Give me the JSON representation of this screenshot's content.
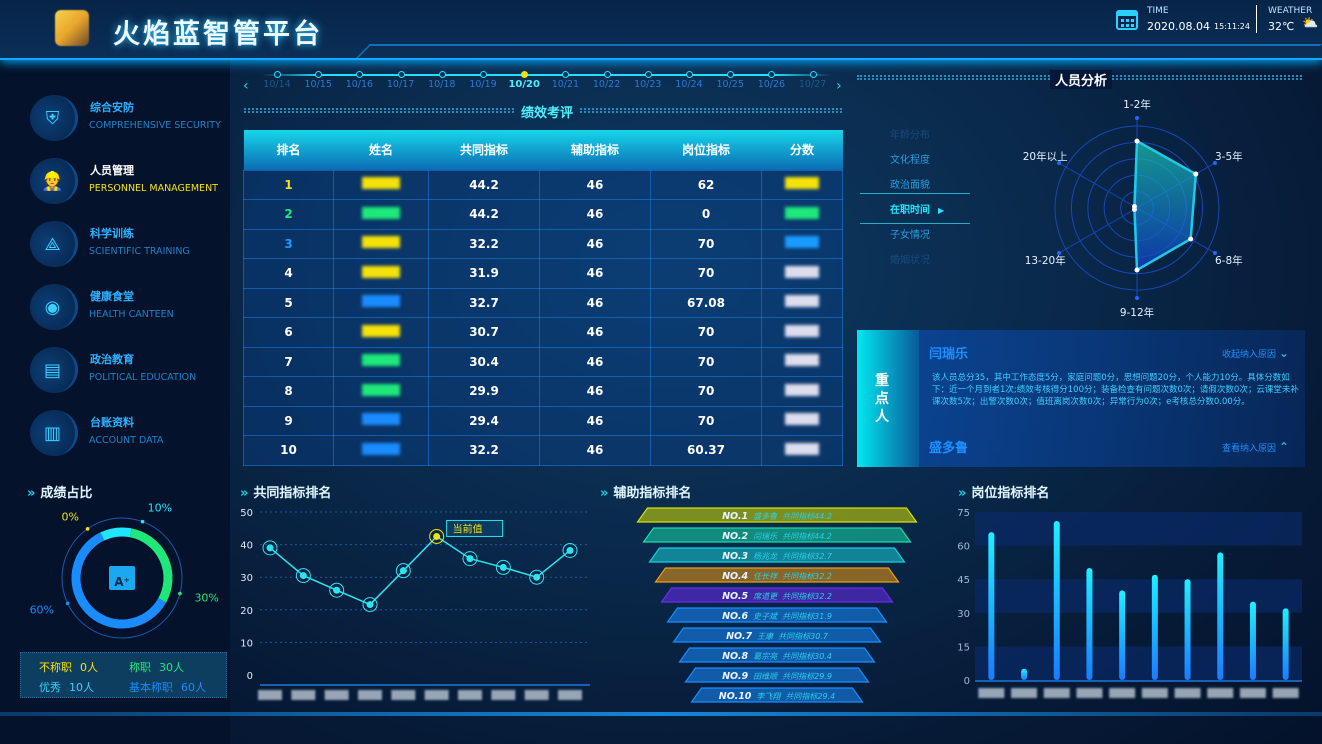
{
  "header": {
    "title": "火焰蓝智管平台",
    "time_label": "TIME",
    "date": "2020.08.04",
    "clock": "15:11:24",
    "weather_label": "WEATHER",
    "temperature": "32℃",
    "calendar_icon": "calendar-icon",
    "weather_icon": "partly-cloudy-icon"
  },
  "sidebar": {
    "items": [
      {
        "cn": "综合安防",
        "en": "COMPREHENSIVE SECURITY",
        "icon": "shield-icon",
        "active": false
      },
      {
        "cn": "人员管理",
        "en": "PERSONNEL MANAGEMENT",
        "icon": "firefighter-icon",
        "active": true
      },
      {
        "cn": "科学训练",
        "en": "SCIENTIFIC TRAINING",
        "icon": "network-icon",
        "active": false
      },
      {
        "cn": "健康食堂",
        "en": "HEALTH CANTEEN",
        "icon": "food-icon",
        "active": false
      },
      {
        "cn": "政治教育",
        "en": "POLITICAL EDUCATION",
        "icon": "book-icon",
        "active": false
      },
      {
        "cn": "台账资料",
        "en": "ACCOUNT DATA",
        "icon": "building-icon",
        "active": false
      }
    ]
  },
  "timeline": {
    "dates": [
      "10/14",
      "10/15",
      "10/16",
      "10/17",
      "10/18",
      "10/19",
      "10/20",
      "10/21",
      "10/22",
      "10/23",
      "10/24",
      "10/25",
      "10/26",
      "10/27"
    ],
    "selected": "10/20"
  },
  "performance": {
    "title": "绩效考评",
    "columns": [
      "排名",
      "姓名",
      "共同指标",
      "辅助指标",
      "岗位指标",
      "分数"
    ],
    "rows": [
      {
        "rank": "1",
        "common": "44.2",
        "aux": "46",
        "post": "62",
        "color": "#f5e20a"
      },
      {
        "rank": "2",
        "common": "44.2",
        "aux": "46",
        "post": "0",
        "color": "#1ee87a"
      },
      {
        "rank": "3",
        "common": "32.2",
        "aux": "46",
        "post": "70",
        "color": "#1a9bff"
      },
      {
        "rank": "4",
        "common": "31.9",
        "aux": "46",
        "post": "70",
        "color": "#ffffff"
      },
      {
        "rank": "5",
        "common": "32.7",
        "aux": "46",
        "post": "67.08",
        "color": "#ffffff"
      },
      {
        "rank": "6",
        "common": "30.7",
        "aux": "46",
        "post": "70",
        "color": "#ffffff"
      },
      {
        "rank": "7",
        "common": "30.4",
        "aux": "46",
        "post": "70",
        "color": "#ffffff"
      },
      {
        "rank": "8",
        "common": "29.9",
        "aux": "46",
        "post": "70",
        "color": "#ffffff"
      },
      {
        "rank": "9",
        "common": "29.4",
        "aux": "46",
        "post": "70",
        "color": "#ffffff"
      },
      {
        "rank": "10",
        "common": "32.2",
        "aux": "46",
        "post": "60.37",
        "color": "#ffffff"
      }
    ]
  },
  "analysis": {
    "title": "人员分析",
    "tabs": [
      "年龄分布",
      "文化程度",
      "政治面貌",
      "在职时间",
      "子女情况",
      "婚姻状况"
    ],
    "active_tab": "在职时间"
  },
  "key_person": {
    "label": "重点人",
    "people": [
      {
        "name": "闫瑞乐",
        "action": "收起纳入原因",
        "expanded": true,
        "detail": "该人员总分35，其中工作态度5分，家庭问题0分，思想问题20分，个人能力10分。具体分数如下：近一个月到者1次;绩效考核得分100分；装备检查有问题次数0次；请假次数0次；云课堂未补课次数5次；出警次数0次；值班离岗次数0次；异常行为0次；e考核总分数0.00分。"
      },
      {
        "name": "盛多鲁",
        "action": "查看纳入原因",
        "expanded": false
      }
    ]
  },
  "grade": {
    "title": "成绩占比",
    "center_icon": "grade-a-plus-icon",
    "stats": [
      {
        "label": "不称职",
        "value": "0人",
        "color": "#f5e20a"
      },
      {
        "label": "称职",
        "value": "30人",
        "color": "#1ee87a"
      },
      {
        "label": "优秀",
        "value": "10人",
        "color": "#3ad0ff"
      },
      {
        "label": "基本称职",
        "value": "60人",
        "color": "#1a8cff"
      }
    ]
  },
  "chart_data": [
    {
      "type": "radar",
      "axes": [
        "1-2年",
        "3-5年",
        "6-8年",
        "9-12年",
        "13-20年",
        "20年以上"
      ],
      "values": [
        68,
        69,
        63,
        63,
        3,
        3
      ],
      "range": [
        0,
        100
      ]
    },
    {
      "type": "pie",
      "subtype": "donut",
      "categories": [
        "不称职",
        "优秀",
        "称职",
        "基本称职"
      ],
      "values": [
        0,
        10,
        30,
        60
      ],
      "labels": [
        "0%",
        "10%",
        "30%",
        "60%"
      ],
      "colors": [
        "#f5e20a",
        "#1fe6ff",
        "#1ee87a",
        "#1a8cff"
      ]
    },
    {
      "type": "line",
      "title": "共同指标排名",
      "y_ticks": [
        "0",
        "10",
        "20",
        "30",
        "40",
        "50"
      ],
      "ylim": [
        0,
        50
      ],
      "values": [
        39,
        30.5,
        26,
        21.6,
        32,
        42.5,
        35.7,
        33,
        30,
        38.2
      ],
      "highlight_index": 5,
      "tooltip": "当前值",
      "grid": true
    },
    {
      "type": "funnel",
      "title": "辅助指标排名",
      "items": [
        {
          "rank": "NO.1",
          "name": "盛多鲁",
          "metric": "共同指标44.2",
          "color": "#d8e000"
        },
        {
          "rank": "NO.2",
          "name": "闫瑞乐",
          "metric": "共同指标44.2",
          "color": "#19d9a8"
        },
        {
          "rank": "NO.3",
          "name": "杨兆龙",
          "metric": "共同指标32.7",
          "color": "#19cfd9"
        },
        {
          "rank": "NO.4",
          "name": "任长祥",
          "metric": "共同指标32.2",
          "color": "#f09a10"
        },
        {
          "rank": "NO.5",
          "name": "席道更",
          "metric": "共同指标32.2",
          "color": "#6a2cf0"
        },
        {
          "rank": "NO.6",
          "name": "史子斌",
          "metric": "共同指标31.9",
          "color": "#1a8cff"
        },
        {
          "rank": "NO.7",
          "name": "王康",
          "metric": "共同指标30.7",
          "color": "#1a8cff"
        },
        {
          "rank": "NO.8",
          "name": "葛宗亮",
          "metric": "共同指标30.4",
          "color": "#1a8cff"
        },
        {
          "rank": "NO.9",
          "name": "田维顺",
          "metric": "共同指标29.9",
          "color": "#1a8cff"
        },
        {
          "rank": "NO.10",
          "name": "李飞翔",
          "metric": "共同指标29.4",
          "color": "#1a8cff"
        }
      ]
    },
    {
      "type": "bar",
      "title": "岗位指标排名",
      "y_ticks": [
        "0",
        "15",
        "30",
        "45",
        "60",
        "75"
      ],
      "ylim": [
        0,
        75
      ],
      "values": [
        66,
        5,
        71,
        50,
        40,
        47,
        45,
        57,
        35,
        32
      ],
      "grid": true
    }
  ]
}
